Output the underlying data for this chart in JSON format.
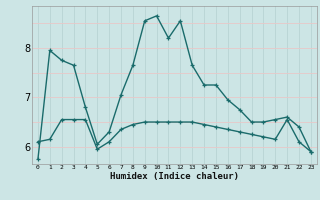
{
  "xlabel": "Humidex (Indice chaleur)",
  "ylabel": "",
  "bg_color": "#cce5e5",
  "grid_color_v": "#b8d4d4",
  "grid_color_h": "#e8c8c8",
  "line_color": "#1a6b6b",
  "xlim": [
    -0.5,
    23.5
  ],
  "ylim": [
    5.65,
    8.85
  ],
  "yticks": [
    6,
    7,
    8
  ],
  "series1_x": [
    0,
    1,
    2,
    3,
    4,
    5,
    6,
    7,
    8,
    9,
    10,
    11,
    12,
    13,
    14,
    15,
    16,
    17,
    18,
    19,
    20,
    21,
    22,
    23
  ],
  "series1_y": [
    5.75,
    7.95,
    7.75,
    7.65,
    6.8,
    6.05,
    6.3,
    7.05,
    7.65,
    8.55,
    8.65,
    8.2,
    8.55,
    7.65,
    7.25,
    7.25,
    6.95,
    6.75,
    6.5,
    6.5,
    6.55,
    6.6,
    6.4,
    5.9
  ],
  "series2_x": [
    0,
    1,
    2,
    3,
    4,
    5,
    6,
    7,
    8,
    9,
    10,
    11,
    12,
    13,
    14,
    15,
    16,
    17,
    18,
    19,
    20,
    21,
    22,
    23
  ],
  "series2_y": [
    6.1,
    6.15,
    6.55,
    6.55,
    6.55,
    5.95,
    6.1,
    6.35,
    6.45,
    6.5,
    6.5,
    6.5,
    6.5,
    6.5,
    6.45,
    6.4,
    6.35,
    6.3,
    6.25,
    6.2,
    6.15,
    6.55,
    6.1,
    5.9
  ],
  "xtick_labels": [
    "0",
    "1",
    "2",
    "3",
    "4",
    "5",
    "6",
    "7",
    "8",
    "9",
    "10",
    "11",
    "12",
    "13",
    "14",
    "15",
    "16",
    "17",
    "18",
    "19",
    "20",
    "21",
    "22",
    "23"
  ]
}
